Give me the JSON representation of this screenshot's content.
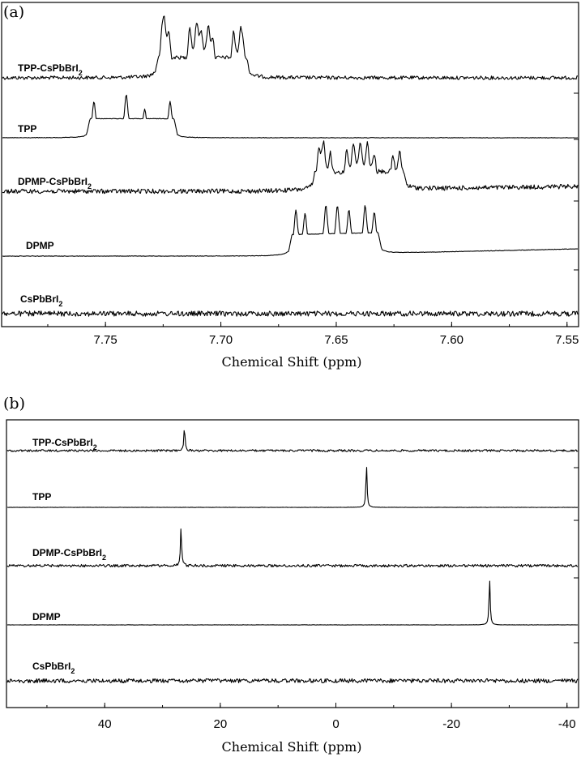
{
  "chart_data": [
    {
      "panel_label": "(a)",
      "type": "line",
      "xlabel": "Chemical Shift (ppm)",
      "xlim": [
        7.795,
        7.545
      ],
      "x_reversed": true,
      "xticks": [
        7.75,
        7.7,
        7.65,
        7.6,
        7.55
      ],
      "xtick_labels": [
        "7.75",
        "7.70",
        "7.65",
        "7.60",
        "7.55"
      ],
      "series": [
        {
          "name": "TPP-CsPbBrI",
          "name_subscript": "2",
          "peaks": [
            {
              "x": 7.7255,
              "h": 0.55
            },
            {
              "x": 7.7245,
              "h": 0.75
            },
            {
              "x": 7.7225,
              "h": 0.65
            },
            {
              "x": 7.7135,
              "h": 0.82
            },
            {
              "x": 7.7105,
              "h": 0.82
            },
            {
              "x": 7.7085,
              "h": 0.62
            },
            {
              "x": 7.7055,
              "h": 0.78
            },
            {
              "x": 7.7035,
              "h": 0.55
            },
            {
              "x": 7.6945,
              "h": 0.78
            },
            {
              "x": 7.6915,
              "h": 0.62
            },
            {
              "x": 7.6905,
              "h": 0.45
            }
          ]
        },
        {
          "name": "TPP",
          "name_subscript": "",
          "peaks": [
            {
              "x": 7.755,
              "h": 0.72
            },
            {
              "x": 7.741,
              "h": 0.85
            },
            {
              "x": 7.733,
              "h": 0.55
            },
            {
              "x": 7.722,
              "h": 0.72
            }
          ]
        },
        {
          "name": "DPMP-CsPbBrI",
          "name_subscript": "2",
          "peaks": [
            {
              "x": 7.6575,
              "h": 0.75
            },
            {
              "x": 7.6555,
              "h": 0.82
            },
            {
              "x": 7.6525,
              "h": 0.68
            },
            {
              "x": 7.6455,
              "h": 0.72
            },
            {
              "x": 7.6425,
              "h": 0.82
            },
            {
              "x": 7.6395,
              "h": 0.82
            },
            {
              "x": 7.6365,
              "h": 0.82
            },
            {
              "x": 7.6335,
              "h": 0.65
            },
            {
              "x": 7.6255,
              "h": 0.62
            },
            {
              "x": 7.6225,
              "h": 0.75
            }
          ]
        },
        {
          "name": "DPMP",
          "name_subscript": "",
          "peaks": [
            {
              "x": 7.6675,
              "h": 0.78
            },
            {
              "x": 7.6635,
              "h": 0.7
            },
            {
              "x": 7.6545,
              "h": 0.85
            },
            {
              "x": 7.6495,
              "h": 0.82
            },
            {
              "x": 7.6445,
              "h": 0.75
            },
            {
              "x": 7.6375,
              "h": 0.82
            },
            {
              "x": 7.6335,
              "h": 0.7
            }
          ]
        },
        {
          "name": "CsPbBrI",
          "name_subscript": "2",
          "peaks": []
        }
      ]
    },
    {
      "panel_label": "(b)",
      "type": "line",
      "xlabel": "Chemical Shift (ppm)",
      "xlim": [
        57,
        -42
      ],
      "x_reversed": true,
      "xticks": [
        40,
        20,
        0,
        -20,
        -40
      ],
      "xtick_labels": [
        "40",
        "20",
        "0",
        "-20",
        "-40"
      ],
      "series": [
        {
          "name": "TPP-CsPbBrI",
          "name_subscript": "2",
          "peaks": [
            {
              "x": 26.2,
              "h": 0.85
            }
          ]
        },
        {
          "name": "TPP",
          "name_subscript": "",
          "peaks": [
            {
              "x": -5.3,
              "h": 0.95
            }
          ]
        },
        {
          "name": "DPMP-CsPbBrI",
          "name_subscript": "2",
          "peaks": [
            {
              "x": 26.8,
              "h": 0.95
            }
          ]
        },
        {
          "name": "DPMP",
          "name_subscript": "",
          "peaks": [
            {
              "x": -26.6,
              "h": 0.95
            }
          ]
        },
        {
          "name": "CsPbBrI",
          "name_subscript": "2",
          "peaks": []
        }
      ]
    }
  ]
}
